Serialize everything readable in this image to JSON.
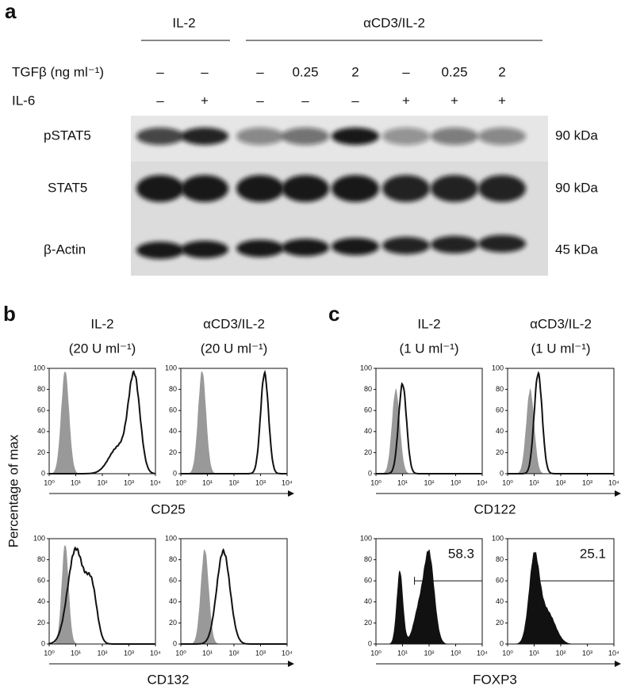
{
  "panel_a": {
    "label": "a",
    "group_headers": [
      "IL-2",
      "αCD3/IL-2"
    ],
    "treatments": [
      {
        "name": "TGFβ (ng ml⁻¹)",
        "lanes": [
          "–",
          "–",
          "–",
          "0.25",
          "2",
          "–",
          "0.25",
          "2"
        ]
      },
      {
        "name": "IL-6",
        "lanes": [
          "–",
          "+",
          "–",
          "–",
          "–",
          "+",
          "+",
          "+"
        ]
      }
    ],
    "blots": [
      {
        "name": "pSTAT5",
        "size": "90 kDa"
      },
      {
        "name": "STAT5",
        "size": "90 kDa"
      },
      {
        "name": "β-Actin",
        "size": "45 kDa"
      }
    ]
  },
  "axes": {
    "y_title": "Percentage of max",
    "yticks": [
      0,
      20,
      40,
      60,
      80,
      100
    ],
    "xticks": [
      "10⁰",
      "10¹",
      "10²",
      "10³",
      "10⁴"
    ]
  },
  "panel_b": {
    "label": "b",
    "conditions": [
      {
        "name": "IL-2",
        "dose": "(20 U ml⁻¹)"
      },
      {
        "name": "αCD3/IL-2",
        "dose": "(20 U ml⁻¹)"
      }
    ],
    "rows": [
      {
        "marker": "CD25"
      },
      {
        "marker": "CD132"
      }
    ]
  },
  "panel_c": {
    "label": "c",
    "conditions": [
      {
        "name": "IL-2",
        "dose": "(1 U ml⁻¹)"
      },
      {
        "name": "αCD3/IL-2",
        "dose": "(1 U ml⁻¹)"
      }
    ],
    "rows": [
      {
        "marker": "CD122"
      },
      {
        "marker": "FOXP3",
        "gates": [
          58.3,
          25.1
        ]
      }
    ]
  }
}
